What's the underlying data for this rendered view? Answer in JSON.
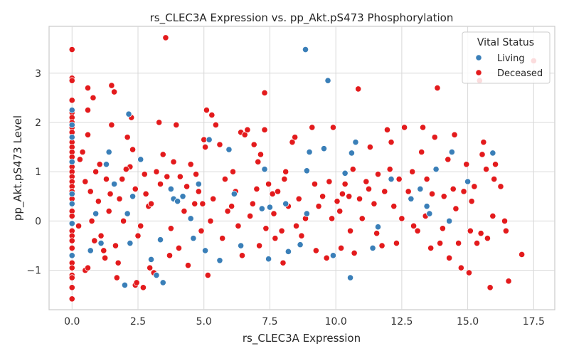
{
  "chart_data": {
    "type": "scatter",
    "title": "rs_CLEC3A Expression vs. pp_Akt.pS473 Phosphorylation",
    "xlabel": "rs_CLEC3A Expression",
    "ylabel": "pp_Akt.pS473 Level",
    "xlim": [
      -0.87,
      18.3
    ],
    "ylim": [
      -1.8,
      3.95
    ],
    "xticks": [
      0.0,
      2.5,
      5.0,
      7.5,
      10.0,
      12.5,
      15.0,
      17.5
    ],
    "xtick_labels": [
      "0.0",
      "2.5",
      "5.0",
      "7.5",
      "10.0",
      "12.5",
      "15.0",
      "17.5"
    ],
    "yticks": [
      -1,
      0,
      1,
      2,
      3
    ],
    "ytick_labels": [
      "−1",
      "0",
      "1",
      "2",
      "3"
    ],
    "grid": true,
    "legend": {
      "title": "Vital Status",
      "placement": "top-right"
    },
    "series": [
      {
        "name": "Living",
        "color": "#3a7fb8",
        "points": [
          [
            0.0,
            1.7
          ],
          [
            0.0,
            1.2
          ],
          [
            0.0,
            0.55
          ],
          [
            0.0,
            0.35
          ],
          [
            0.0,
            -0.05
          ],
          [
            0.0,
            -0.7
          ],
          [
            0.0,
            1.95
          ],
          [
            0.0,
            2.25
          ],
          [
            0.7,
            -0.6
          ],
          [
            0.9,
            0.15
          ],
          [
            1.3,
            1.15
          ],
          [
            1.4,
            1.4
          ],
          [
            1.6,
            0.75
          ],
          [
            1.1,
            -0.45
          ],
          [
            2.0,
            -1.3
          ],
          [
            2.1,
            0.15
          ],
          [
            2.15,
            2.17
          ],
          [
            2.2,
            -0.45
          ],
          [
            2.3,
            0.5
          ],
          [
            2.6,
            1.25
          ],
          [
            3.0,
            -0.78
          ],
          [
            3.2,
            -1.1
          ],
          [
            3.35,
            -0.38
          ],
          [
            3.45,
            -1.25
          ],
          [
            3.75,
            0.65
          ],
          [
            3.85,
            0.45
          ],
          [
            4.0,
            0.4
          ],
          [
            4.2,
            0.5
          ],
          [
            4.5,
            0.05
          ],
          [
            4.6,
            -0.35
          ],
          [
            4.8,
            0.75
          ],
          [
            5.05,
            -0.6
          ],
          [
            5.2,
            1.65
          ],
          [
            5.6,
            -0.8
          ],
          [
            5.95,
            1.45
          ],
          [
            6.15,
            0.55
          ],
          [
            6.4,
            -0.5
          ],
          [
            7.3,
            1.05
          ],
          [
            7.2,
            0.25
          ],
          [
            7.5,
            0.28
          ],
          [
            7.45,
            -0.77
          ],
          [
            8.1,
            0.35
          ],
          [
            8.2,
            -0.62
          ],
          [
            8.65,
            -0.48
          ],
          [
            8.9,
            1.02
          ],
          [
            9.0,
            1.4
          ],
          [
            8.9,
            0.15
          ],
          [
            8.85,
            3.48
          ],
          [
            9.55,
            1.47
          ],
          [
            9.7,
            2.85
          ],
          [
            9.9,
            -0.7
          ],
          [
            10.35,
            0.97
          ],
          [
            10.55,
            -1.15
          ],
          [
            10.6,
            1.38
          ],
          [
            10.75,
            1.6
          ],
          [
            11.4,
            -0.55
          ],
          [
            11.6,
            -0.12
          ],
          [
            12.1,
            0.85
          ],
          [
            12.85,
            0.45
          ],
          [
            13.2,
            0.65
          ],
          [
            13.45,
            0.3
          ],
          [
            13.55,
            0.15
          ],
          [
            13.8,
            1.05
          ],
          [
            14.3,
            0.0
          ],
          [
            14.4,
            1.4
          ],
          [
            15.0,
            0.8
          ],
          [
            15.95,
            1.38
          ]
        ]
      },
      {
        "name": "Deceased",
        "color": "#e31a1c",
        "points": [
          [
            0.0,
            3.48
          ],
          [
            0.0,
            2.9
          ],
          [
            0.0,
            2.85
          ],
          [
            0.0,
            2.45
          ],
          [
            0.0,
            2.2
          ],
          [
            0.0,
            2.1
          ],
          [
            0.0,
            2.0
          ],
          [
            0.0,
            1.9
          ],
          [
            0.0,
            1.8
          ],
          [
            0.0,
            1.6
          ],
          [
            0.0,
            1.5
          ],
          [
            0.0,
            1.4
          ],
          [
            0.0,
            1.3
          ],
          [
            0.0,
            1.1
          ],
          [
            0.0,
            1.0
          ],
          [
            0.0,
            0.9
          ],
          [
            0.0,
            0.8
          ],
          [
            0.0,
            0.7
          ],
          [
            0.0,
            0.6
          ],
          [
            0.0,
            0.45
          ],
          [
            0.0,
            0.2
          ],
          [
            0.0,
            0.1
          ],
          [
            0.0,
            -0.2
          ],
          [
            0.0,
            -0.3
          ],
          [
            0.0,
            -0.4
          ],
          [
            0.0,
            -0.55
          ],
          [
            0.0,
            -0.85
          ],
          [
            0.0,
            -0.95
          ],
          [
            0.0,
            -1.1
          ],
          [
            0.0,
            -1.15
          ],
          [
            0.0,
            -1.35
          ],
          [
            0.0,
            -1.58
          ],
          [
            0.4,
            1.4
          ],
          [
            0.6,
            1.75
          ],
          [
            0.6,
            2.7
          ],
          [
            0.6,
            2.25
          ],
          [
            0.8,
            2.5
          ],
          [
            0.5,
            -1.0
          ],
          [
            0.6,
            -0.95
          ],
          [
            0.7,
            0.6
          ],
          [
            0.9,
            1.0
          ],
          [
            1.0,
            0.4
          ],
          [
            1.1,
            -0.3
          ],
          [
            1.2,
            -0.6
          ],
          [
            1.3,
            0.85
          ],
          [
            1.4,
            0.2
          ],
          [
            1.5,
            2.75
          ],
          [
            1.5,
            1.95
          ],
          [
            1.6,
            2.62
          ],
          [
            1.65,
            -0.5
          ],
          [
            1.7,
            -1.15
          ],
          [
            1.8,
            0.45
          ],
          [
            1.9,
            0.85
          ],
          [
            2.1,
            1.7
          ],
          [
            2.2,
            1.1
          ],
          [
            2.25,
            2.1
          ],
          [
            2.3,
            1.45
          ],
          [
            2.4,
            0.65
          ],
          [
            2.4,
            -1.3
          ],
          [
            2.45,
            -1.25
          ],
          [
            2.5,
            -0.3
          ],
          [
            2.7,
            -1.35
          ],
          [
            2.8,
            0.55
          ],
          [
            2.9,
            0.3
          ],
          [
            2.95,
            -0.95
          ],
          [
            3.1,
            -1.05
          ],
          [
            3.2,
            1.0
          ],
          [
            3.3,
            2.0
          ],
          [
            3.45,
            1.35
          ],
          [
            3.55,
            3.72
          ],
          [
            3.6,
            0.9
          ],
          [
            3.7,
            -0.7
          ],
          [
            3.85,
            1.2
          ],
          [
            3.95,
            1.95
          ],
          [
            4.1,
            0.9
          ],
          [
            4.25,
            0.2
          ],
          [
            4.4,
            -0.9
          ],
          [
            4.5,
            1.15
          ],
          [
            4.7,
            0.95
          ],
          [
            4.8,
            0.6
          ],
          [
            4.9,
            -0.2
          ],
          [
            5.0,
            1.65
          ],
          [
            5.05,
            1.5
          ],
          [
            5.1,
            2.25
          ],
          [
            5.15,
            -1.1
          ],
          [
            5.25,
            0.0
          ],
          [
            5.3,
            2.15
          ],
          [
            5.45,
            1.95
          ],
          [
            5.6,
            1.55
          ],
          [
            5.8,
            0.85
          ],
          [
            5.9,
            0.2
          ],
          [
            6.1,
            1.0
          ],
          [
            6.2,
            0.6
          ],
          [
            6.3,
            -0.1
          ],
          [
            6.4,
            1.8
          ],
          [
            6.55,
            1.75
          ],
          [
            6.65,
            1.85
          ],
          [
            6.75,
            0.1
          ],
          [
            6.9,
            1.55
          ],
          [
            7.0,
            0.65
          ],
          [
            7.1,
            -0.5
          ],
          [
            7.15,
            1.35
          ],
          [
            7.3,
            2.6
          ],
          [
            7.3,
            1.85
          ],
          [
            7.35,
            -0.15
          ],
          [
            7.45,
            0.75
          ],
          [
            7.6,
            0.55
          ],
          [
            7.65,
            0.15
          ],
          [
            7.8,
            0.6
          ],
          [
            7.95,
            -0.2
          ],
          [
            8.05,
            0.85
          ],
          [
            8.1,
            1.0
          ],
          [
            8.2,
            0.3
          ],
          [
            8.35,
            1.6
          ],
          [
            8.45,
            1.7
          ],
          [
            8.5,
            -0.1
          ],
          [
            8.7,
            -0.3
          ],
          [
            8.85,
            0.05
          ],
          [
            9.1,
            1.9
          ],
          [
            9.2,
            0.75
          ],
          [
            9.35,
            0.3
          ],
          [
            9.5,
            0.5
          ],
          [
            9.65,
            -0.75
          ],
          [
            9.75,
            0.8
          ],
          [
            9.9,
            1.9
          ],
          [
            10.05,
            0.4
          ],
          [
            10.15,
            0.2
          ],
          [
            10.2,
            -0.55
          ],
          [
            10.35,
            0.75
          ],
          [
            10.5,
            0.5
          ],
          [
            10.55,
            -0.2
          ],
          [
            10.7,
            -0.65
          ],
          [
            10.85,
            2.68
          ],
          [
            10.9,
            0.45
          ],
          [
            11.0,
            0.05
          ],
          [
            11.15,
            0.8
          ],
          [
            11.3,
            1.5
          ],
          [
            11.45,
            0.35
          ],
          [
            11.55,
            -0.25
          ],
          [
            11.6,
            0.95
          ],
          [
            11.85,
            0.6
          ],
          [
            11.95,
            1.85
          ],
          [
            12.1,
            1.6
          ],
          [
            12.2,
            0.3
          ],
          [
            12.3,
            -0.45
          ],
          [
            12.5,
            0.05
          ],
          [
            12.6,
            1.9
          ],
          [
            12.75,
            0.6
          ],
          [
            12.9,
            1.0
          ],
          [
            13.1,
            -0.2
          ],
          [
            13.25,
            1.4
          ],
          [
            13.3,
            1.9
          ],
          [
            13.45,
            0.85
          ],
          [
            13.6,
            -0.55
          ],
          [
            13.75,
            1.7
          ],
          [
            13.85,
            2.7
          ],
          [
            13.95,
            -0.45
          ],
          [
            14.1,
            0.5
          ],
          [
            14.25,
            1.25
          ],
          [
            14.3,
            -0.75
          ],
          [
            14.45,
            0.65
          ],
          [
            14.5,
            1.75
          ],
          [
            14.65,
            -0.45
          ],
          [
            14.75,
            -0.95
          ],
          [
            14.85,
            0.6
          ],
          [
            14.95,
            1.15
          ],
          [
            15.05,
            -1.05
          ],
          [
            15.1,
            -0.2
          ],
          [
            15.25,
            0.7
          ],
          [
            15.35,
            -0.45
          ],
          [
            15.45,
            2.85
          ],
          [
            15.55,
            1.35
          ],
          [
            15.6,
            1.6
          ],
          [
            15.7,
            1.05
          ],
          [
            15.75,
            -0.35
          ],
          [
            15.85,
            -1.35
          ],
          [
            15.95,
            0.1
          ],
          [
            16.05,
            1.15
          ],
          [
            16.25,
            0.7
          ],
          [
            16.4,
            0.0
          ],
          [
            16.55,
            -1.22
          ],
          [
            16.45,
            -0.2
          ],
          [
            17.05,
            -0.68
          ],
          [
            17.5,
            3.25
          ],
          [
            0.3,
            1.25
          ],
          [
            0.25,
            -0.1
          ],
          [
            0.5,
            0.8
          ],
          [
            0.75,
            0.0
          ],
          [
            0.85,
            -0.4
          ],
          [
            1.05,
            1.15
          ],
          [
            1.25,
            -0.75
          ],
          [
            1.45,
            0.55
          ],
          [
            1.75,
            -0.85
          ],
          [
            1.95,
            0.0
          ],
          [
            2.05,
            1.05
          ],
          [
            2.6,
            -0.1
          ],
          [
            2.75,
            0.95
          ],
          [
            3.0,
            0.35
          ],
          [
            3.35,
            0.75
          ],
          [
            3.75,
            -0.15
          ],
          [
            4.05,
            -0.55
          ],
          [
            4.35,
            0.7
          ],
          [
            4.65,
            0.35
          ],
          [
            4.95,
            0.35
          ],
          [
            5.35,
            0.45
          ],
          [
            5.7,
            -0.35
          ],
          [
            6.05,
            0.3
          ],
          [
            6.45,
            -0.7
          ],
          [
            6.85,
            0.35
          ],
          [
            7.05,
            1.2
          ],
          [
            7.7,
            -0.35
          ],
          [
            8.0,
            -0.85
          ],
          [
            8.6,
            0.45
          ],
          [
            9.25,
            -0.6
          ],
          [
            9.85,
            0.05
          ],
          [
            10.25,
            0.55
          ],
          [
            10.65,
            1.05
          ],
          [
            11.25,
            0.65
          ],
          [
            11.75,
            -0.5
          ],
          [
            12.05,
            1.05
          ],
          [
            12.4,
            0.85
          ],
          [
            12.95,
            -0.1
          ],
          [
            13.4,
            0.1
          ],
          [
            13.65,
            0.55
          ],
          [
            14.05,
            -0.15
          ],
          [
            14.55,
            0.25
          ],
          [
            15.15,
            0.4
          ],
          [
            15.5,
            -0.25
          ],
          [
            16.0,
            0.85
          ]
        ]
      }
    ]
  }
}
